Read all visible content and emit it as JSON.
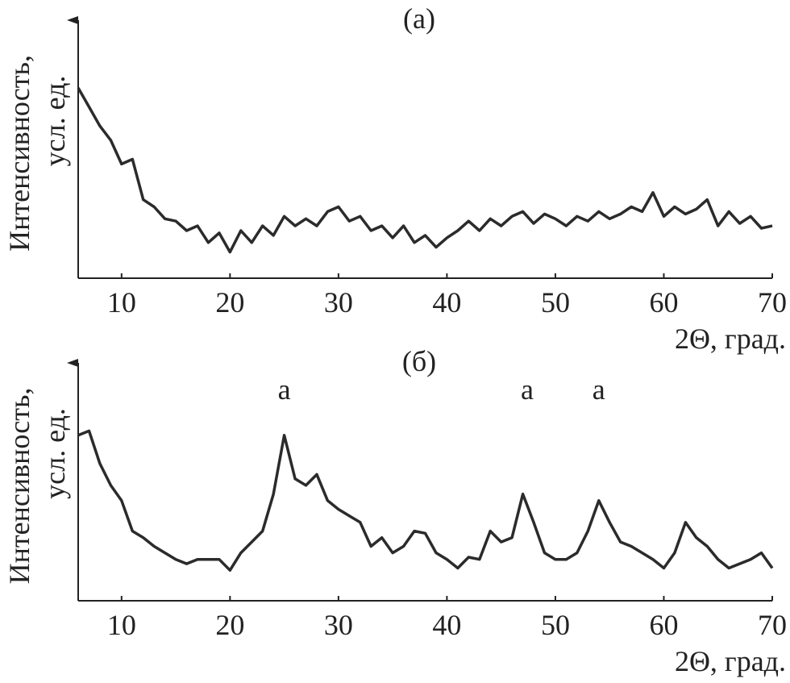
{
  "chart_data": [
    {
      "type": "line",
      "title": "(а)",
      "ylabel": [
        "Интенсивность,",
        "усл. ед."
      ],
      "xlabel": "2Θ, град.",
      "x": [
        6,
        7,
        8,
        9,
        10,
        11,
        12,
        13,
        14,
        15,
        16,
        17,
        18,
        19,
        20,
        21,
        22,
        23,
        24,
        25,
        26,
        27,
        28,
        29,
        30,
        31,
        32,
        33,
        34,
        35,
        36,
        37,
        38,
        39,
        40,
        41,
        42,
        43,
        44,
        45,
        46,
        47,
        48,
        49,
        50,
        51,
        52,
        53,
        54,
        55,
        56,
        57,
        58,
        59,
        60,
        61,
        62,
        63,
        64,
        65,
        66,
        67,
        68,
        69,
        70
      ],
      "values": [
        80,
        72,
        64,
        58,
        48,
        50,
        33,
        30,
        25,
        24,
        20,
        22,
        15,
        19,
        11,
        20,
        15,
        22,
        18,
        26,
        22,
        25,
        22,
        28,
        30,
        24,
        26,
        20,
        22,
        17,
        22,
        15,
        18,
        13,
        17,
        20,
        24,
        20,
        25,
        22,
        26,
        28,
        23,
        27,
        25,
        22,
        26,
        24,
        28,
        25,
        27,
        30,
        28,
        36,
        26,
        30,
        27,
        29,
        33,
        22,
        28,
        23,
        26,
        21,
        22
      ],
      "color": "#2b2b2b",
      "xlim": [
        6,
        70
      ],
      "xticks": [
        10,
        20,
        30,
        40,
        50,
        60,
        70
      ],
      "ylim": [
        0,
        100
      ]
    },
    {
      "type": "line",
      "title": "(б)",
      "ylabel": [
        "Интенсивность,",
        "усл. ед."
      ],
      "xlabel": "2Θ, град.",
      "x": [
        6,
        7,
        8,
        9,
        10,
        11,
        12,
        13,
        14,
        15,
        16,
        17,
        18,
        19,
        20,
        21,
        22,
        23,
        24,
        25,
        26,
        27,
        28,
        29,
        30,
        31,
        32,
        33,
        34,
        35,
        36,
        37,
        38,
        39,
        40,
        41,
        42,
        43,
        44,
        45,
        46,
        47,
        48,
        49,
        50,
        51,
        52,
        53,
        54,
        55,
        56,
        57,
        58,
        59,
        60,
        61,
        62,
        63,
        64,
        65,
        66,
        67,
        68,
        69,
        70
      ],
      "values": [
        76,
        78,
        63,
        53,
        46,
        32,
        29,
        25,
        22,
        19,
        17,
        19,
        19,
        19,
        14,
        22,
        27,
        32,
        49,
        76,
        56,
        53,
        58,
        46,
        42,
        39,
        36,
        25,
        29,
        22,
        25,
        32,
        31,
        22,
        19,
        15,
        20,
        19,
        32,
        27,
        29,
        49,
        36,
        22,
        19,
        19,
        22,
        32,
        46,
        36,
        27,
        25,
        22,
        19,
        15,
        22,
        36,
        29,
        25,
        19,
        15,
        17,
        19,
        22,
        15
      ],
      "color": "#2b2b2b",
      "xlim": [
        6,
        70
      ],
      "xticks": [
        10,
        20,
        30,
        40,
        50,
        60,
        70
      ],
      "ylim": [
        0,
        100
      ],
      "annotations": [
        {
          "text": "a",
          "x": 25
        },
        {
          "text": "a",
          "x": 47.4
        },
        {
          "text": "a",
          "x": 54
        }
      ]
    }
  ]
}
